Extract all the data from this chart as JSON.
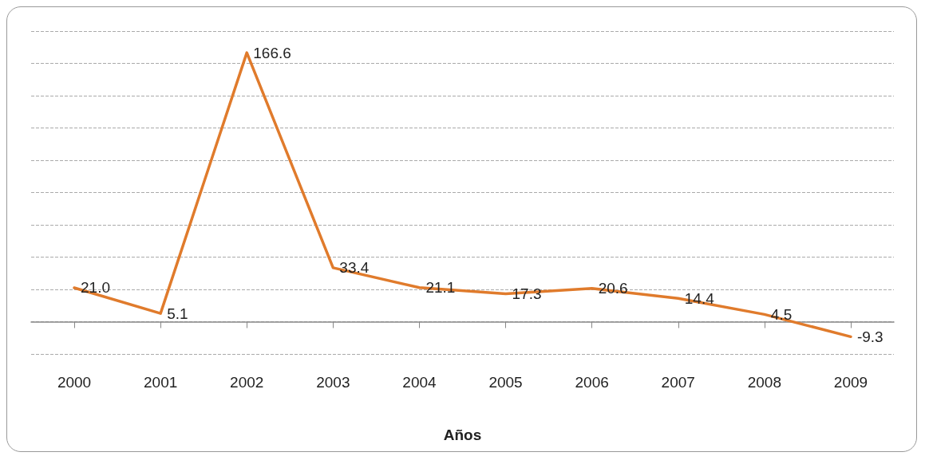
{
  "chart_data": {
    "type": "line",
    "xlabel": "Años",
    "categories": [
      "2000",
      "2001",
      "2002",
      "2003",
      "2004",
      "2005",
      "2006",
      "2007",
      "2008",
      "2009"
    ],
    "series": [
      {
        "color": "#e07b2c",
        "values": [
          21.0,
          5.1,
          166.6,
          33.4,
          21.1,
          17.3,
          20.6,
          14.4,
          4.5,
          -9.3
        ],
        "value_labels": [
          "21.0",
          "5.1",
          "166.6",
          "33.4",
          "21.1",
          "17.3",
          "20.6",
          "14.4",
          "4.5",
          "-9.3"
        ]
      }
    ],
    "ylim": [
      -20,
      180
    ],
    "yticks": [
      {
        "value": -20,
        "label": null
      },
      {
        "value": 0,
        "label": null
      },
      {
        "value": 20,
        "label": null
      },
      {
        "value": 40,
        "label": null
      },
      {
        "value": 60,
        "label": null
      },
      {
        "value": 80,
        "label": null
      },
      {
        "value": 100,
        "label": null
      },
      {
        "value": 120,
        "label": null
      },
      {
        "value": 140,
        "label": null
      },
      {
        "value": 160,
        "label": null
      },
      {
        "value": 180,
        "label": null
      }
    ],
    "grid": "y",
    "marker": "none",
    "line_style": "solid",
    "tick_labels": "x"
  }
}
